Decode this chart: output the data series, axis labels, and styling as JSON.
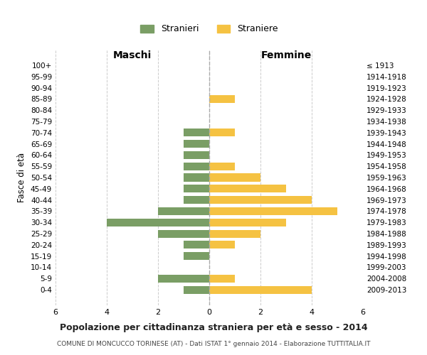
{
  "age_groups": [
    "100+",
    "95-99",
    "90-94",
    "85-89",
    "80-84",
    "75-79",
    "70-74",
    "65-69",
    "60-64",
    "55-59",
    "50-54",
    "45-49",
    "40-44",
    "35-39",
    "30-34",
    "25-29",
    "20-24",
    "15-19",
    "10-14",
    "5-9",
    "0-4"
  ],
  "birth_years": [
    "≤ 1913",
    "1914-1918",
    "1919-1923",
    "1924-1928",
    "1929-1933",
    "1934-1938",
    "1939-1943",
    "1944-1948",
    "1949-1953",
    "1954-1958",
    "1959-1963",
    "1964-1968",
    "1969-1973",
    "1974-1978",
    "1979-1983",
    "1984-1988",
    "1989-1993",
    "1994-1998",
    "1999-2003",
    "2004-2008",
    "2009-2013"
  ],
  "maschi": [
    0,
    0,
    0,
    0,
    0,
    0,
    1,
    1,
    1,
    1,
    1,
    1,
    1,
    2,
    4,
    2,
    1,
    1,
    0,
    2,
    1
  ],
  "femmine": [
    0,
    0,
    0,
    1,
    0,
    0,
    1,
    0,
    0,
    1,
    2,
    3,
    4,
    5,
    3,
    2,
    1,
    0,
    0,
    1,
    4
  ],
  "color_maschi": "#7a9e65",
  "color_femmine": "#f5c242",
  "title": "Popolazione per cittadinanza straniera per età e sesso - 2014",
  "subtitle": "COMUNE DI MONCUCCO TORINESE (AT) - Dati ISTAT 1° gennaio 2014 - Elaborazione TUTTITALIA.IT",
  "ylabel_left": "Fasce di età",
  "header_left": "Maschi",
  "header_right": "Femmine",
  "legend_maschi": "Stranieri",
  "legend_femmine": "Straniere",
  "xlim": 6,
  "background_color": "#ffffff",
  "grid_color": "#cccccc"
}
